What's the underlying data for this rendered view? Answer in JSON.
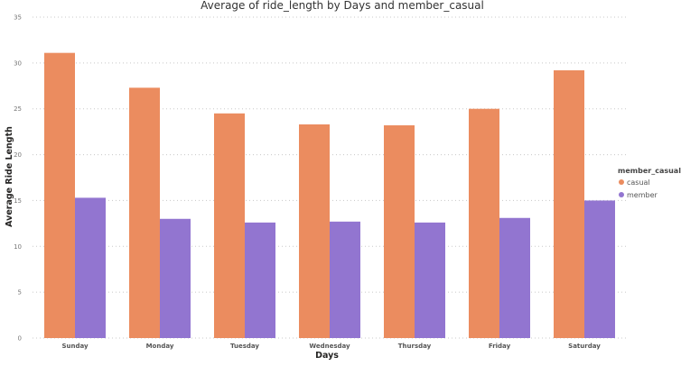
{
  "chart_data": {
    "type": "bar",
    "title": "Average of ride_length by Days and member_casual",
    "xlabel": "Days",
    "ylabel": "Average Ride Length",
    "categories": [
      "Sunday",
      "Monday",
      "Tuesday",
      "Wednesday",
      "Thursday",
      "Friday",
      "Saturday"
    ],
    "series": [
      {
        "name": "casual",
        "color": "#EB8C5F",
        "values": [
          31.1,
          27.3,
          24.5,
          23.3,
          23.2,
          25.0,
          29.2
        ]
      },
      {
        "name": "member",
        "color": "#9275D0",
        "values": [
          15.3,
          13.0,
          12.6,
          12.7,
          12.6,
          13.1,
          15.0
        ]
      }
    ],
    "ylim": [
      0,
      35
    ],
    "yticks": [
      "0",
      "5",
      "10",
      "15",
      "20",
      "25",
      "30",
      "35"
    ],
    "grid": true,
    "legend": {
      "title": "member_casual",
      "placement": "right"
    }
  }
}
